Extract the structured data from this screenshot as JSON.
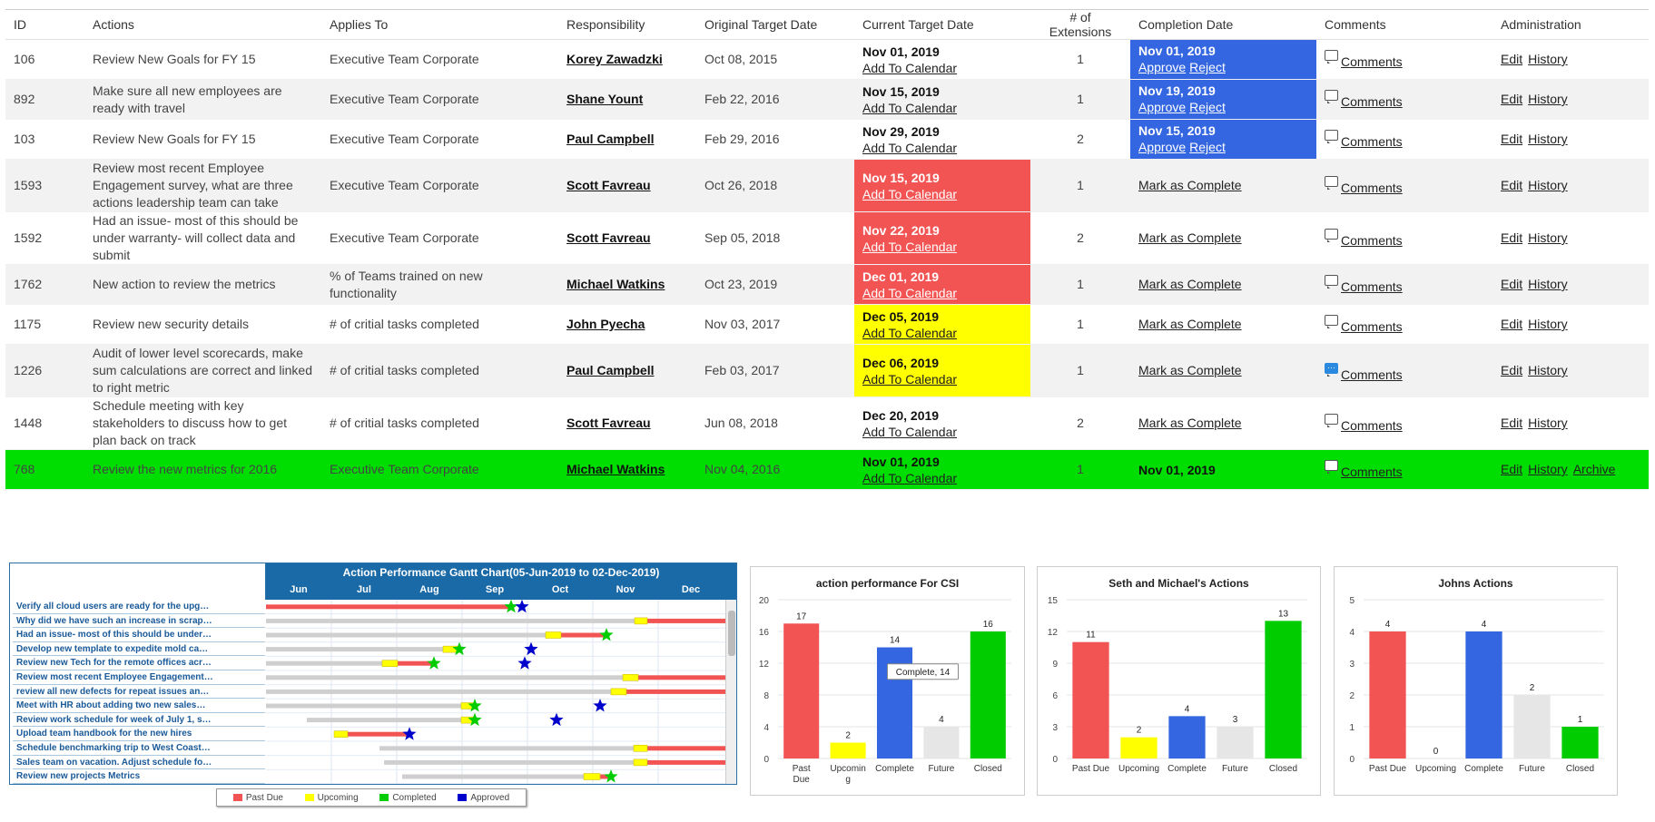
{
  "table": {
    "headers": [
      "ID",
      "Actions",
      "Applies To",
      "Responsibility",
      "Original Target Date",
      "Current Target Date",
      "# of Extensions",
      "Completion Date",
      "Comments",
      "Administration"
    ],
    "rows": [
      {
        "id": "106",
        "action": "Review New Goals for FY 15",
        "applies": "Executive Team Corporate",
        "resp": "Korey Zawadzki",
        "orig": "Oct 08, 2015",
        "cur": "Nov 01, 2019",
        "cal": "Add To Calendar",
        "ext": "1",
        "comp_date": "Nov 01, 2019",
        "approve": "Approve",
        "reject": "Reject",
        "comments": "Comments",
        "edit": "Edit",
        "history": "History"
      },
      {
        "id": "892",
        "action": "Make sure all new employees are ready with travel",
        "applies": "Executive Team Corporate",
        "resp": "Shane Yount",
        "orig": "Feb 22, 2016",
        "cur": "Nov 15, 2019",
        "cal": "Add To Calendar",
        "ext": "1",
        "comp_date": "Nov 19, 2019",
        "approve": "Approve",
        "reject": "Reject",
        "comments": "Comments",
        "edit": "Edit",
        "history": "History"
      },
      {
        "id": "103",
        "action": "Review New Goals for FY 15",
        "applies": "Executive Team Corporate",
        "resp": "Paul Campbell",
        "orig": "Feb 29, 2016",
        "cur": "Nov 29, 2019",
        "cal": "Add To Calendar",
        "ext": "2",
        "comp_date": "Nov 15, 2019",
        "approve": "Approve",
        "reject": "Reject",
        "comments": "Comments",
        "edit": "Edit",
        "history": "History"
      },
      {
        "id": "1593",
        "action": "Review most recent Employee Engagement survey, what are three actions leadership team can take",
        "applies": "Executive Team Corporate",
        "resp": "Scott Favreau",
        "orig": "Oct 26, 2018",
        "cur": "Nov 15, 2019",
        "cal": "Add To Calendar",
        "ext": "1",
        "mark": "Mark as Complete",
        "comments": "Comments",
        "edit": "Edit",
        "history": "History"
      },
      {
        "id": "1592",
        "action": "Had an issue- most of this should be under warranty- will collect data and submit",
        "applies": "Executive Team Corporate",
        "resp": "Scott Favreau",
        "orig": "Sep 05, 2018",
        "cur": "Nov 22, 2019",
        "cal": "Add To Calendar",
        "ext": "2",
        "mark": "Mark as Complete",
        "comments": "Comments",
        "edit": "Edit",
        "history": "History"
      },
      {
        "id": "1762",
        "action": "New action to review the metrics",
        "applies": "% of Teams trained on new functionality",
        "resp": "Michael Watkins",
        "orig": "Oct 23, 2019",
        "cur": "Dec 01, 2019",
        "cal": "Add To Calendar",
        "ext": "1",
        "mark": "Mark as Complete",
        "comments": "Comments",
        "edit": "Edit",
        "history": "History"
      },
      {
        "id": "1175",
        "action": "Review new security details",
        "applies": "# of critial tasks completed",
        "resp": "John Pyecha",
        "orig": "Nov 03, 2017",
        "cur": "Dec 05, 2019",
        "cal": "Add To Calendar",
        "ext": "1",
        "mark": "Mark as Complete",
        "comments": "Comments",
        "edit": "Edit",
        "history": "History"
      },
      {
        "id": "1226",
        "action": "Audit of lower level scorecards, make sum calculations are correct and linked to right metric",
        "applies": "# of critial tasks completed",
        "resp": "Paul Campbell",
        "orig": "Feb 03, 2017",
        "cur": "Dec 06, 2019",
        "cal": "Add To Calendar",
        "ext": "1",
        "mark": "Mark as Complete",
        "comments": "Comments",
        "edit": "Edit",
        "history": "History"
      },
      {
        "id": "1448",
        "action": "Schedule meeting with key stakeholders to discuss how to get plan back on track",
        "applies": "# of critial tasks completed",
        "resp": "Scott Favreau",
        "orig": "Jun 08, 2018",
        "cur": "Dec 20, 2019",
        "cal": "Add To Calendar",
        "ext": "2",
        "mark": "Mark as Complete",
        "comments": "Comments",
        "edit": "Edit",
        "history": "History"
      },
      {
        "id": "768",
        "action": "Review the new metrics for 2016",
        "applies": "Executive Team Corporate",
        "resp": "Michael Watkins",
        "orig": "Nov 04, 2016",
        "cur": "Nov 01, 2019",
        "cal": "Add To Calendar",
        "ext": "1",
        "comp_date": "Nov 01, 2019",
        "comments": "Comments",
        "edit": "Edit",
        "history": "History",
        "archive": "Archive"
      }
    ]
  },
  "colors": {
    "past_due": "#f25454",
    "upcoming": "#ffff00",
    "complete": "#3366e0",
    "future": "#e6e6e6",
    "closed": "#00cc00",
    "approved": "#0000cc",
    "row_green": "#00dd00"
  },
  "gantt": {
    "title": "Action Performance Gantt Chart(05-Jun-2019 to 02-Dec-2019)",
    "months": [
      "Jun",
      "Jul",
      "Aug",
      "Sep",
      "Oct",
      "Nov",
      "Dec"
    ],
    "tasks": [
      "Verify all cloud users are ready for the upg…",
      "Why did we have such an increase in scrap…",
      "Had an issue- most of this should be under…",
      "Develop new template to expedite mold ca…",
      "Review new Tech for the remote offices acr…",
      "Review most recent Employee Engagement…",
      "review all new defects for repeat issues an…",
      "Meet with HR about adding two new sales…",
      "Review work schedule for week of July 1, s…",
      "Upload team handbook for the new hires",
      "Schedule benchmarking trip to West Coast…",
      "Sales team on vacation. Adjust schedule fo…",
      "Review new projects Metrics"
    ],
    "legend": [
      "Past Due",
      "Upcoming",
      "Completed",
      "Approved"
    ]
  },
  "chart_data": [
    {
      "type": "bar",
      "title": "action performance For CSI",
      "categories": [
        "Past Due",
        "Upcomin g",
        "Complete",
        "Future",
        "Closed"
      ],
      "values": [
        17,
        2,
        14,
        4,
        16
      ],
      "ylim": [
        0,
        20
      ],
      "yticks": [
        0,
        4,
        8,
        12,
        16,
        20
      ],
      "tooltip": "Complete, 14"
    },
    {
      "type": "bar",
      "title": "Seth and Michael's Actions",
      "categories": [
        "Past Due",
        "Upcoming",
        "Complete",
        "Future",
        "Closed"
      ],
      "values": [
        11,
        2,
        4,
        3,
        13
      ],
      "ylim": [
        0,
        15
      ],
      "yticks": [
        0,
        3,
        6,
        9,
        12,
        15
      ]
    },
    {
      "type": "bar",
      "title": "Johns Actions",
      "categories": [
        "Past Due",
        "Upcoming",
        "Complete",
        "Future",
        "Closed"
      ],
      "values": [
        4,
        0,
        4,
        2,
        1
      ],
      "ylim": [
        0,
        5
      ],
      "yticks": [
        0,
        1,
        2,
        3,
        4,
        5
      ]
    }
  ]
}
